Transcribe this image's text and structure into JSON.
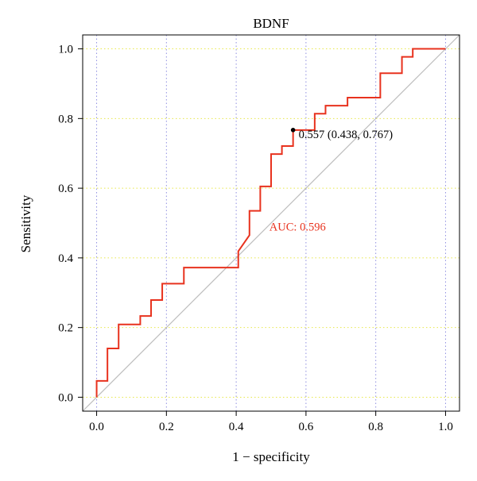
{
  "chart_data": {
    "type": "line",
    "title": "BDNF",
    "xlabel": "1 − specificity",
    "ylabel": "Sensitivity",
    "xlim": [
      -0.04,
      1.04
    ],
    "ylim": [
      -0.04,
      1.04
    ],
    "x_ticks": [
      0.0,
      0.2,
      0.4,
      0.6,
      0.8,
      1.0
    ],
    "y_ticks": [
      0.0,
      0.2,
      0.4,
      0.6,
      0.8,
      1.0
    ],
    "x_tick_labels": [
      "0.0",
      "0.2",
      "0.4",
      "0.6",
      "0.8",
      "1.0"
    ],
    "y_tick_labels": [
      "0.0",
      "0.2",
      "0.4",
      "0.6",
      "0.8",
      "1.0"
    ],
    "grid": true,
    "series": [
      {
        "color": "#e8321e",
        "x": [
          0.0,
          0.0,
          0.031,
          0.031,
          0.063,
          0.063,
          0.125,
          0.125,
          0.156,
          0.156,
          0.188,
          0.188,
          0.25,
          0.25,
          0.406,
          0.406,
          0.438,
          0.438,
          0.469,
          0.469,
          0.5,
          0.5,
          0.531,
          0.531,
          0.563,
          0.563,
          0.625,
          0.625,
          0.656,
          0.656,
          0.719,
          0.719,
          0.813,
          0.813,
          0.875,
          0.875,
          0.906,
          0.906,
          1.0
        ],
        "y": [
          0.0,
          0.047,
          0.047,
          0.14,
          0.14,
          0.209,
          0.209,
          0.233,
          0.233,
          0.279,
          0.279,
          0.326,
          0.326,
          0.372,
          0.372,
          0.419,
          0.465,
          0.535,
          0.535,
          0.605,
          0.605,
          0.698,
          0.698,
          0.721,
          0.721,
          0.767,
          0.767,
          0.814,
          0.814,
          0.837,
          0.837,
          0.86,
          0.86,
          0.93,
          0.93,
          0.977,
          0.977,
          1.0,
          1.0
        ]
      }
    ],
    "reference_line": {
      "x": [
        0,
        1
      ],
      "y": [
        0,
        1
      ],
      "color": "#bdbdbd"
    },
    "threshold_point": {
      "x": 0.563,
      "y": 0.767,
      "label": "0.557 (0.438, 0.767)"
    },
    "annotations": [
      {
        "text": "AUC: 0.596",
        "x": 0.495,
        "y": 0.49,
        "color": "#e8321e"
      }
    ]
  }
}
